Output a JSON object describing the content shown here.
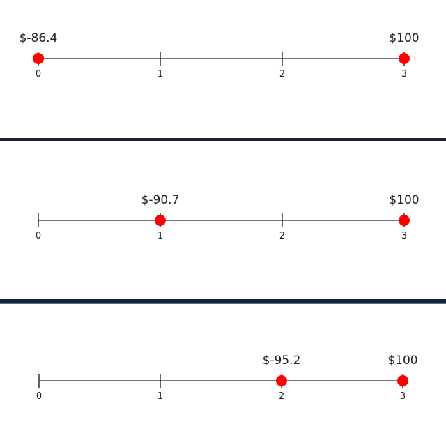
{
  "timelines": [
    {
      "ticks": [
        "0",
        "1",
        "2",
        "3"
      ],
      "points": [
        {
          "position": 0,
          "label": "$-86.4"
        },
        {
          "position": 3,
          "label": "$100"
        }
      ]
    },
    {
      "ticks": [
        "0",
        "1",
        "2",
        "3"
      ],
      "points": [
        {
          "position": 1,
          "label": "$-90.7"
        },
        {
          "position": 3,
          "label": "$100"
        }
      ]
    },
    {
      "ticks": [
        "0",
        "1",
        "2",
        "3"
      ],
      "points": [
        {
          "position": 2,
          "label": "$-95.2"
        },
        {
          "position": 3,
          "label": "$100"
        }
      ]
    }
  ],
  "colors": {
    "point": "#ff0000",
    "line": "#222222",
    "divider": "#1c2230",
    "accent": "#2a7aa0"
  }
}
